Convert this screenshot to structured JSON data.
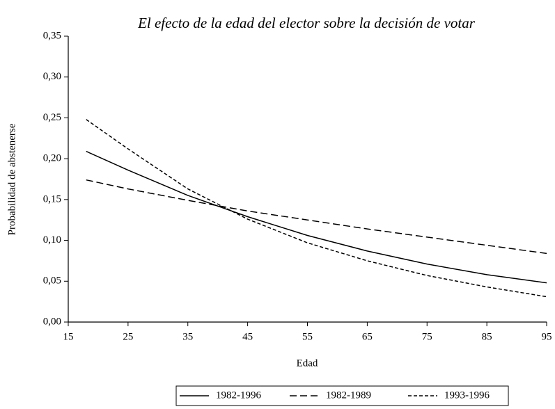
{
  "chart_data": {
    "type": "line",
    "title": "El efecto de la edad del elector sobre la decisión de votar",
    "xlabel": "Edad",
    "ylabel": "Probabilidad de abstenerse",
    "x": [
      18,
      25,
      35,
      45,
      55,
      65,
      75,
      85,
      95
    ],
    "series": [
      {
        "name": "1982-1996",
        "color": "#000000",
        "line_style": "solid",
        "values": [
          0.209,
          0.186,
          0.155,
          0.129,
          0.106,
          0.087,
          0.071,
          0.058,
          0.048
        ]
      },
      {
        "name": "1982-1989",
        "color": "#000000",
        "line_style": "dashed",
        "values": [
          0.174,
          0.163,
          0.149,
          0.136,
          0.125,
          0.114,
          0.104,
          0.094,
          0.084
        ]
      },
      {
        "name": "1993-1996",
        "color": "#000000",
        "line_style": "dotted",
        "values": [
          0.248,
          0.212,
          0.163,
          0.126,
          0.097,
          0.075,
          0.057,
          0.043,
          0.031
        ]
      }
    ],
    "xlim": [
      15,
      95
    ],
    "xticks": [
      15,
      25,
      35,
      45,
      55,
      65,
      75,
      85,
      95
    ],
    "ylim": [
      0,
      0.35
    ],
    "yticks": [
      {
        "value": 0,
        "label": "0,00"
      },
      {
        "value": 0.05,
        "label": "0,05"
      },
      {
        "value": 0.1,
        "label": "0,10"
      },
      {
        "value": 0.15,
        "label": "0,15"
      },
      {
        "value": 0.2,
        "label": "0,20"
      },
      {
        "value": 0.25,
        "label": "0,25"
      },
      {
        "value": 0.3,
        "label": "0,30"
      },
      {
        "value": 0.35,
        "label": "0,35"
      }
    ],
    "grid": false,
    "legend": "bottom"
  }
}
